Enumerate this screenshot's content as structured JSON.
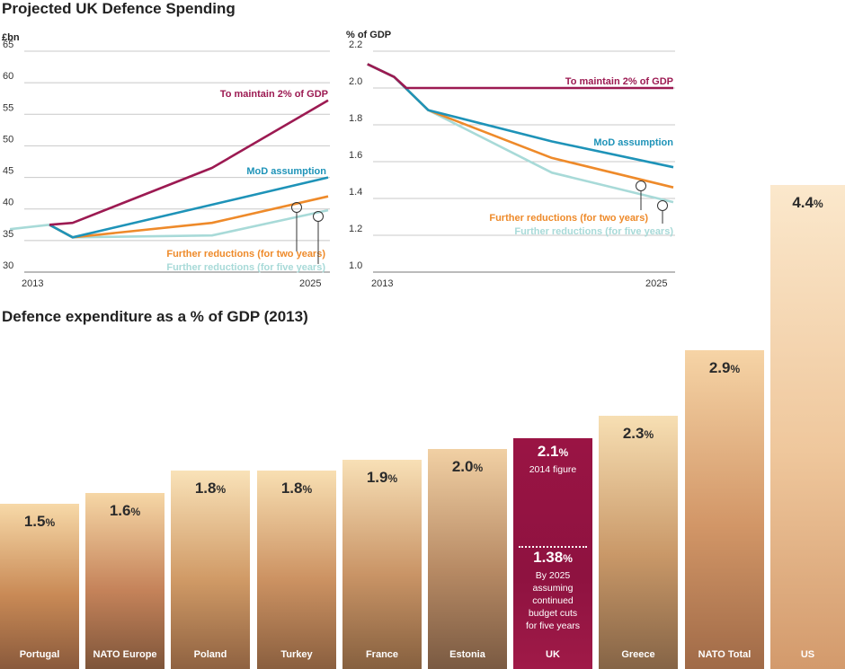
{
  "title": "Projected UK Defence Spending",
  "subtitle": "Defence expenditure as a % of GDP (2013)",
  "colors": {
    "maintain": "#9c1a52",
    "mod": "#1e93b8",
    "two_years": "#ee8a2a",
    "five_years": "#a8dad8",
    "uk_bar": "#9a1444"
  },
  "chart_data": [
    {
      "type": "line",
      "ylabel": "£bn",
      "ylim": [
        30,
        65
      ],
      "yticks": [
        30,
        35,
        40,
        45,
        50,
        55,
        60,
        65
      ],
      "xticks": [
        "2013",
        "2025"
      ],
      "xlim": [
        2013,
        2025
      ],
      "grid": true,
      "series": [
        {
          "name": "To maintain 2% of GDP",
          "color": "#9c1a52",
          "x": [
            2013,
            2014,
            2020,
            2025
          ],
          "y": [
            37.5,
            37.8,
            46.5,
            57.2
          ]
        },
        {
          "name": "MoD assumption",
          "color": "#1e93b8",
          "x": [
            2013,
            2014,
            2025
          ],
          "y": [
            37.5,
            35.5,
            45.0
          ]
        },
        {
          "name": "Further reductions (for two years)",
          "color": "#ee8a2a",
          "x": [
            2013,
            2014,
            2020,
            2025
          ],
          "y": [
            37.5,
            35.5,
            37.8,
            42.0
          ]
        },
        {
          "name": "Further reductions (for five years)",
          "color": "#a8dad8",
          "x": [
            2011.3,
            2013,
            2014,
            2020,
            2025
          ],
          "y": [
            36.8,
            37.5,
            35.5,
            35.8,
            39.8
          ]
        }
      ],
      "annotations": [
        {
          "text": "To maintain 2% of GDP",
          "series": 0
        },
        {
          "text": "MoD assumption",
          "series": 1
        },
        {
          "text": "Further reductions (for two years)",
          "series": 2
        },
        {
          "text": "Further reductions (for five years)",
          "series": 3
        }
      ]
    },
    {
      "type": "line",
      "ylabel": "% of GDP",
      "ylim": [
        1.0,
        2.2
      ],
      "yticks": [
        "1.0",
        "1.2",
        "1.4",
        "1.6",
        "1.8",
        "2.0",
        "2.2"
      ],
      "xticks": [
        "2013",
        "2025"
      ],
      "xlim": [
        2013,
        2025
      ],
      "grid": true,
      "series": [
        {
          "name": "To maintain 2% of GDP",
          "color": "#9c1a52",
          "x": [
            2012.4,
            2013.5,
            2014,
            2025
          ],
          "y": [
            2.13,
            2.06,
            2.0,
            2.0
          ]
        },
        {
          "name": "MoD assumption",
          "color": "#1e93b8",
          "x": [
            2012.4,
            2013.5,
            2014.9,
            2020,
            2025
          ],
          "y": [
            2.13,
            2.06,
            1.88,
            1.71,
            1.57
          ]
        },
        {
          "name": "Further reductions (for two years)",
          "color": "#ee8a2a",
          "x": [
            2012.4,
            2013.5,
            2014.9,
            2020,
            2025
          ],
          "y": [
            2.13,
            2.06,
            1.88,
            1.62,
            1.46
          ]
        },
        {
          "name": "Further reductions (for five years)",
          "color": "#a8dad8",
          "x": [
            2012.4,
            2013.5,
            2014.9,
            2020,
            2025
          ],
          "y": [
            2.13,
            2.06,
            1.88,
            1.54,
            1.38
          ]
        }
      ],
      "annotations": [
        {
          "text": "To maintain 2% of GDP",
          "series": 0
        },
        {
          "text": "MoD assumption",
          "series": 1
        },
        {
          "text": "Further reductions (for two years)",
          "series": 2
        },
        {
          "text": "Further reductions (for five years)",
          "series": 3
        }
      ]
    },
    {
      "type": "bar",
      "categories": [
        "Portugal",
        "NATO Europe",
        "Poland",
        "Turkey",
        "France",
        "Estonia",
        "UK",
        "Greece",
        "NATO Total",
        "US"
      ],
      "values": [
        1.5,
        1.6,
        1.8,
        1.8,
        1.9,
        2.0,
        2.1,
        2.3,
        2.9,
        4.4
      ],
      "value_labels": [
        "1.5",
        "1.6",
        "1.8",
        "1.8",
        "1.9",
        "2.0",
        "2.1",
        "2.3",
        "2.9",
        "4.4"
      ],
      "unit": "%",
      "highlight": "UK",
      "uk_note": {
        "top_value": "2.1",
        "top_caption": "2014 figure",
        "bottom_value": "1.38",
        "bottom_caption_lines": [
          "By 2025",
          "assuming",
          "continued",
          "budget cuts",
          "for five years"
        ]
      }
    }
  ]
}
